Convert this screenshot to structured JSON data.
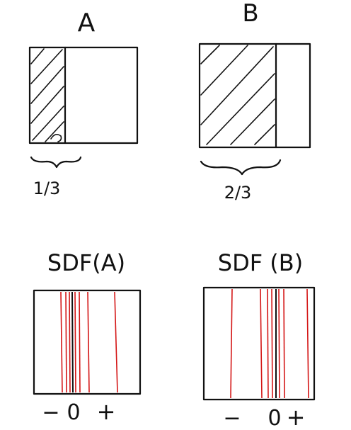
{
  "panels": [
    {
      "id": "A",
      "label": "A",
      "fraction": "1/3",
      "fill": 0.3333
    },
    {
      "id": "B",
      "label": "B",
      "fraction": "2/3",
      "fill": 0.6667
    }
  ],
  "sdf_panels": [
    {
      "id": "A",
      "label": "SDF(A)",
      "neg": "−",
      "zero": "0",
      "pos": "+"
    },
    {
      "id": "B",
      "label": "SDF (B)",
      "neg": "−",
      "zero": "0",
      "pos": "+"
    }
  ],
  "colors": {
    "ink": "#111111",
    "red": "#d41616"
  }
}
